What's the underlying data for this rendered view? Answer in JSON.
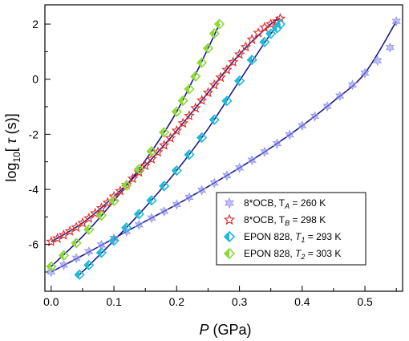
{
  "chart_data": {
    "type": "scatter",
    "xlabel": {
      "var": "P",
      "unit": "(GPa)"
    },
    "ylabel": {
      "pre": "log",
      "sub": "10",
      "mid": "[",
      "var": "τ",
      "unit": "(s)]"
    },
    "xlim": [
      -0.01,
      0.56
    ],
    "ylim": [
      -7.7,
      2.7
    ],
    "xticks": [
      0.0,
      0.1,
      0.2,
      0.3,
      0.4,
      0.5
    ],
    "xtick_labels": [
      "0.0",
      "0.1",
      "0.2",
      "0.3",
      "0.4",
      "0.5"
    ],
    "yticks": [
      -6,
      -4,
      -2,
      0,
      2
    ],
    "ytick_labels": [
      "-6",
      "-4",
      "-2",
      "0",
      "2"
    ],
    "legend_position": "bottom-right",
    "fit_line_color": "#1a1a8c",
    "series": [
      {
        "legend": {
          "pre": "8*OCB, T",
          "sub": "A",
          "post": " = 260 K"
        },
        "marker": "star6",
        "color": "#8f8ff0",
        "x": [
          0.0,
          0.02,
          0.04,
          0.06,
          0.08,
          0.1,
          0.12,
          0.14,
          0.16,
          0.18,
          0.2,
          0.22,
          0.24,
          0.26,
          0.28,
          0.3,
          0.32,
          0.34,
          0.36,
          0.38,
          0.4,
          0.42,
          0.44,
          0.46,
          0.48,
          0.5,
          0.52,
          0.54,
          0.55
        ],
        "y": [
          -7.0,
          -6.75,
          -6.5,
          -6.26,
          -6.02,
          -5.78,
          -5.53,
          -5.29,
          -5.04,
          -4.8,
          -4.55,
          -4.29,
          -4.03,
          -3.77,
          -3.5,
          -3.22,
          -2.94,
          -2.64,
          -2.34,
          -2.02,
          -1.69,
          -1.35,
          -0.99,
          -0.61,
          -0.21,
          0.22,
          0.67,
          1.15,
          2.1
        ],
        "fit_x": [
          0.0,
          0.05,
          0.1,
          0.15,
          0.2,
          0.25,
          0.3,
          0.35,
          0.4,
          0.45,
          0.5,
          0.55
        ],
        "fit_y": [
          -7.0,
          -6.4,
          -5.78,
          -5.16,
          -4.55,
          -3.9,
          -3.22,
          -2.49,
          -1.69,
          -0.8,
          0.22,
          2.1
        ]
      },
      {
        "legend": {
          "pre": "8*OCB, T",
          "sub": "B",
          "post": " = 298 K"
        },
        "marker": "star5",
        "color": "#e03030",
        "x": [
          0.0,
          0.01,
          0.02,
          0.03,
          0.04,
          0.05,
          0.06,
          0.07,
          0.08,
          0.09,
          0.1,
          0.11,
          0.12,
          0.13,
          0.14,
          0.15,
          0.16,
          0.17,
          0.18,
          0.19,
          0.2,
          0.21,
          0.22,
          0.23,
          0.24,
          0.25,
          0.26,
          0.27,
          0.28,
          0.29,
          0.3,
          0.31,
          0.32,
          0.33,
          0.34,
          0.35,
          0.36,
          0.365
        ],
        "y": [
          -5.9,
          -5.78,
          -5.66,
          -5.52,
          -5.38,
          -5.22,
          -5.05,
          -4.87,
          -4.68,
          -4.48,
          -4.26,
          -4.06,
          -3.84,
          -3.61,
          -3.38,
          -3.14,
          -2.9,
          -2.65,
          -2.4,
          -2.14,
          -1.87,
          -1.6,
          -1.33,
          -1.05,
          -0.77,
          -0.49,
          -0.21,
          0.06,
          0.34,
          0.62,
          0.9,
          1.17,
          1.44,
          1.68,
          1.88,
          2.0,
          2.1,
          2.2
        ],
        "fit_x": [
          0.0,
          0.05,
          0.1,
          0.15,
          0.2,
          0.25,
          0.3,
          0.35,
          0.365
        ],
        "fit_y": [
          -5.9,
          -5.22,
          -4.26,
          -3.14,
          -1.87,
          -0.49,
          0.9,
          2.0,
          2.2
        ]
      },
      {
        "legend": {
          "pre": "EPON 828, ",
          "var": "T",
          "sub": "1",
          "post": " = 293 K"
        },
        "marker": "diamond",
        "color": "#22b8d8",
        "x": [
          0.045,
          0.06,
          0.08,
          0.1,
          0.12,
          0.14,
          0.16,
          0.18,
          0.2,
          0.22,
          0.24,
          0.26,
          0.28,
          0.3,
          0.32,
          0.34,
          0.35,
          0.36,
          0.365
        ],
        "y": [
          -7.1,
          -6.75,
          -6.3,
          -5.86,
          -5.39,
          -4.9,
          -4.4,
          -3.88,
          -3.32,
          -2.74,
          -2.12,
          -1.47,
          -0.79,
          -0.06,
          0.7,
          1.35,
          1.65,
          1.85,
          2.0
        ],
        "fit_x": [
          0.045,
          0.1,
          0.15,
          0.2,
          0.25,
          0.3,
          0.35,
          0.365
        ],
        "fit_y": [
          -7.1,
          -5.86,
          -4.65,
          -3.32,
          -1.8,
          -0.06,
          1.65,
          2.0
        ]
      },
      {
        "legend": {
          "pre": "EPON 828, ",
          "var": "T",
          "sub": "2",
          "post": " = 303 K"
        },
        "marker": "diamond",
        "color": "#8fd838",
        "x": [
          0.0,
          0.02,
          0.04,
          0.06,
          0.08,
          0.1,
          0.12,
          0.14,
          0.16,
          0.18,
          0.2,
          0.21,
          0.22,
          0.23,
          0.24,
          0.25,
          0.26,
          0.268
        ],
        "y": [
          -6.8,
          -6.4,
          -5.95,
          -5.46,
          -4.95,
          -4.42,
          -3.86,
          -3.27,
          -2.62,
          -1.93,
          -1.18,
          -0.78,
          -0.36,
          0.1,
          0.6,
          1.12,
          1.66,
          2.0
        ],
        "fit_x": [
          0.0,
          0.05,
          0.1,
          0.15,
          0.2,
          0.25,
          0.268
        ],
        "fit_y": [
          -6.8,
          -5.71,
          -4.42,
          -2.95,
          -1.18,
          1.12,
          2.0
        ]
      }
    ]
  }
}
